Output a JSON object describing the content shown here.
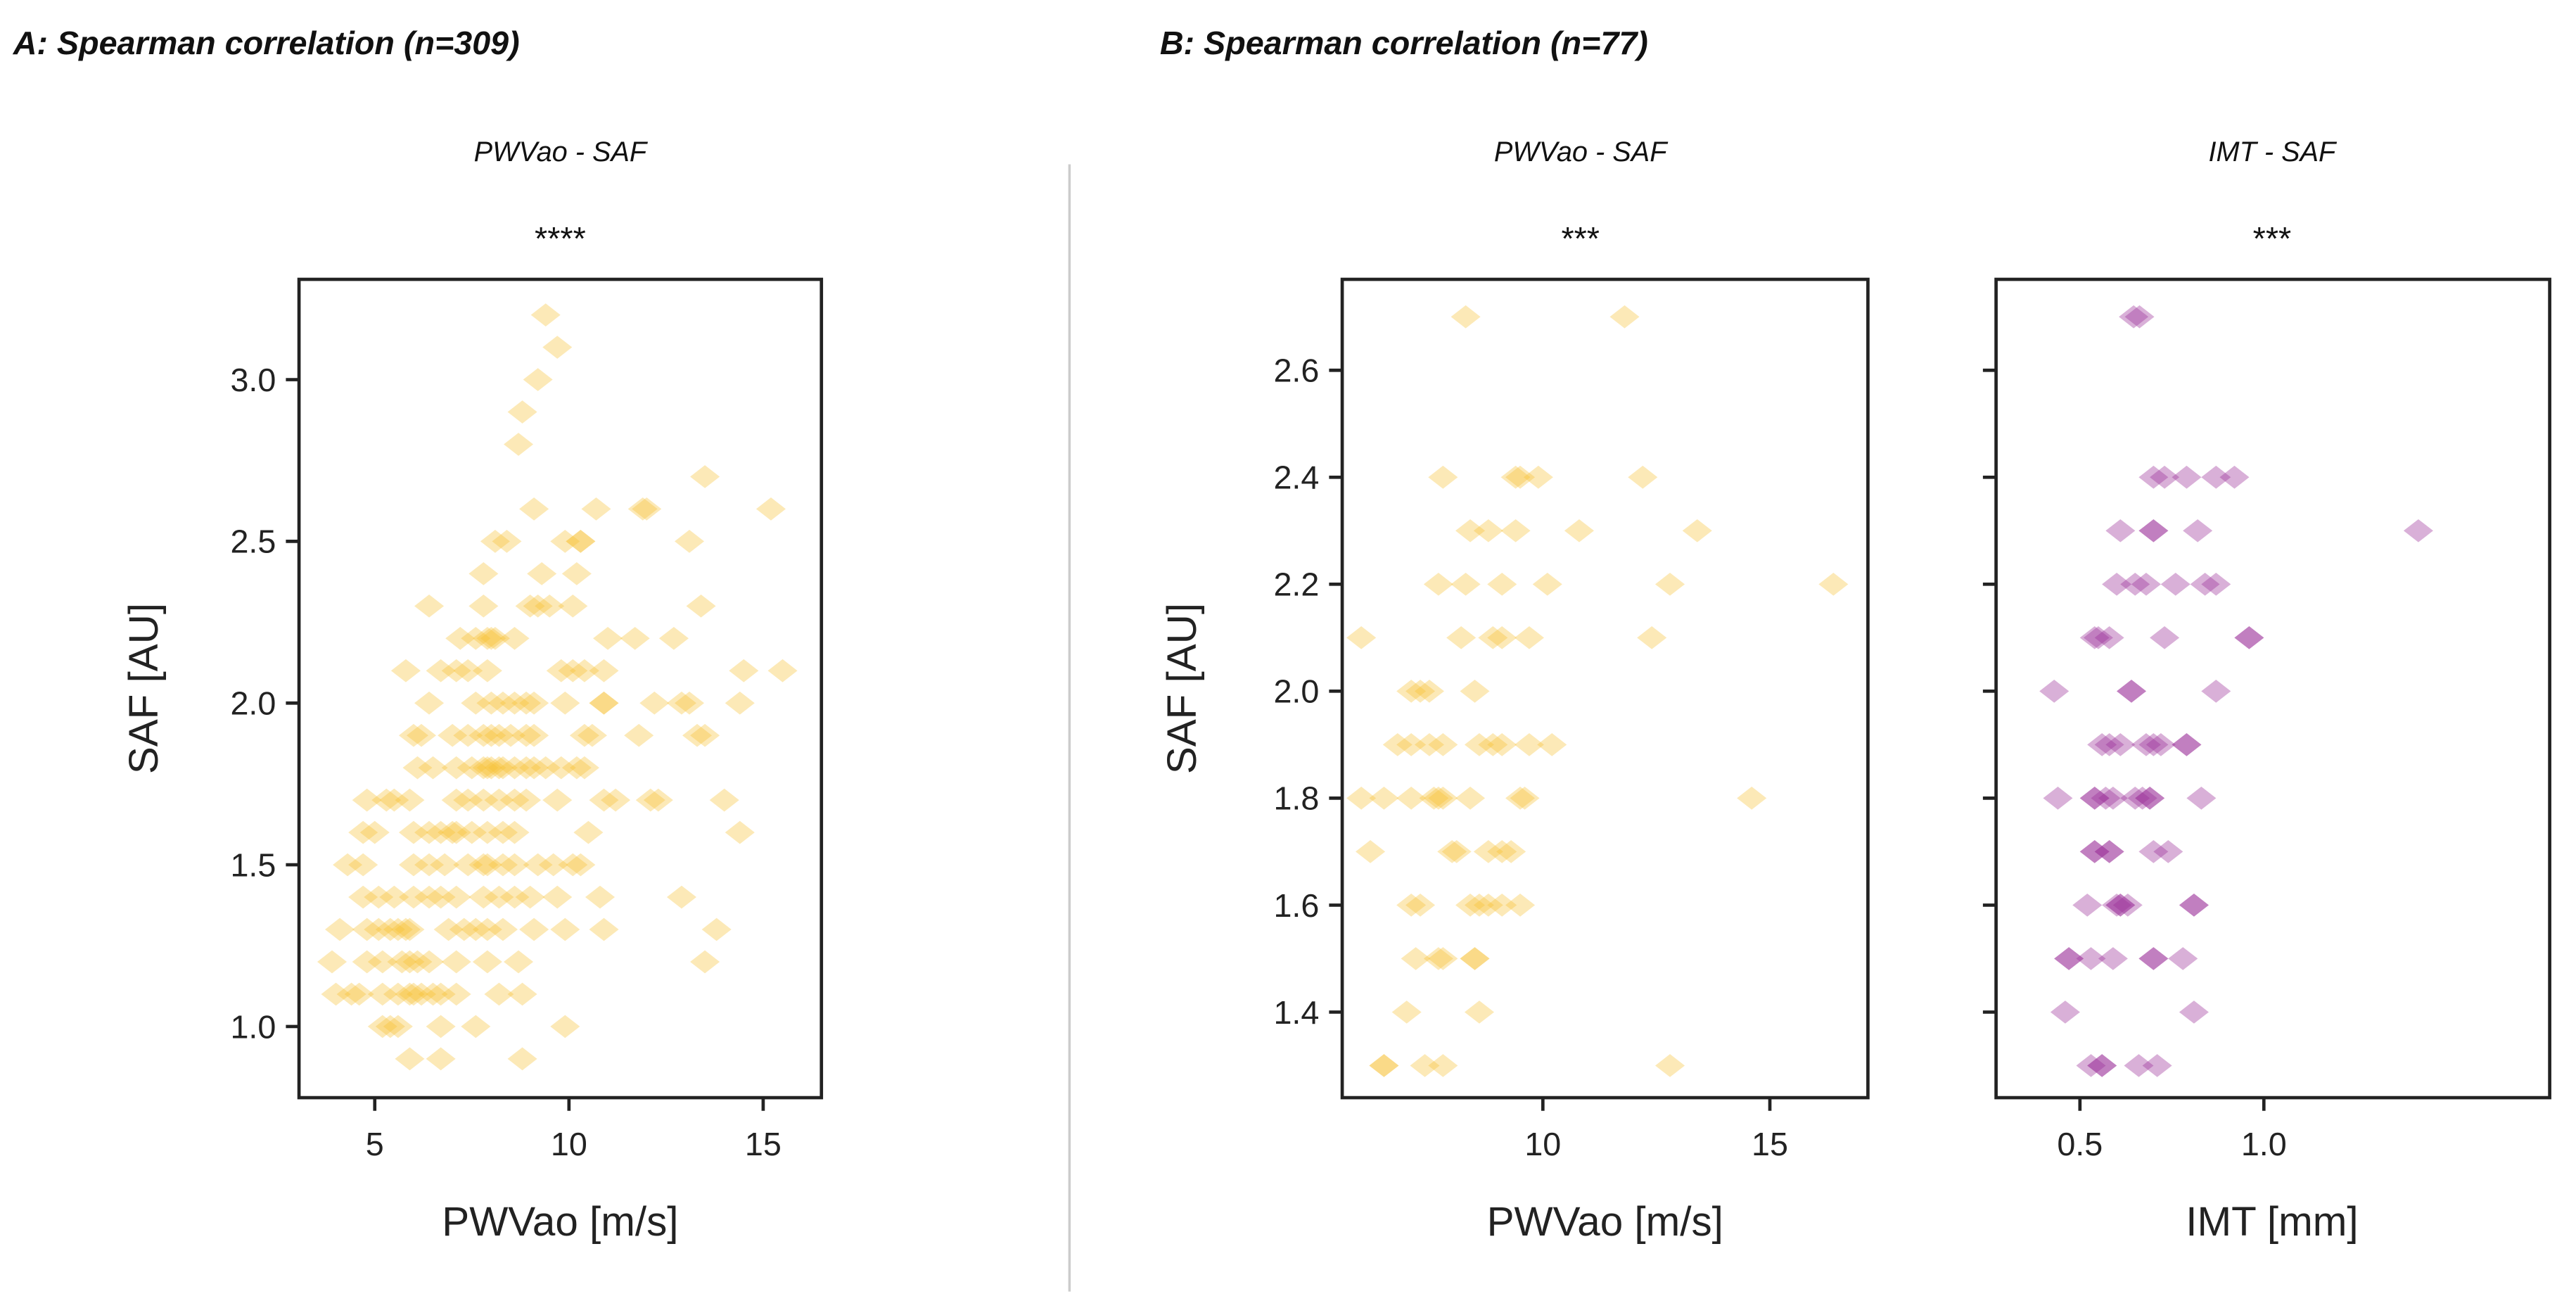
{
  "chart_data": [
    {
      "type": "scatter",
      "panel_title": "A: Spearman correlation (n=309)",
      "title": "PWVao - SAF",
      "significance": "****",
      "xlabel": "PWVao [m/s]",
      "ylabel": "SAF [AU]",
      "xlim": [
        3.05,
        16.5
      ],
      "ylim": [
        0.78,
        3.31
      ],
      "xticks": [
        5,
        10,
        15
      ],
      "xtick_labels": [
        "5",
        "10",
        "15"
      ],
      "yticks": [
        1.0,
        1.5,
        2.0,
        2.5,
        3.0
      ],
      "ytick_labels": [
        "1.0",
        "1.5",
        "2.0",
        "2.5",
        "3.0"
      ],
      "marker": "diamond",
      "color": "#f5c030",
      "grid": false,
      "points": [
        [
          9.4,
          3.2
        ],
        [
          9.7,
          3.1
        ],
        [
          9.2,
          3.0
        ],
        [
          8.8,
          2.9
        ],
        [
          8.7,
          2.8
        ],
        [
          13.5,
          2.7
        ],
        [
          9.1,
          2.6
        ],
        [
          10.7,
          2.6
        ],
        [
          11.9,
          2.6
        ],
        [
          12.0,
          2.6
        ],
        [
          15.2,
          2.6
        ],
        [
          8.1,
          2.5
        ],
        [
          8.4,
          2.5
        ],
        [
          9.9,
          2.5
        ],
        [
          10.3,
          2.5
        ],
        [
          10.3,
          2.5
        ],
        [
          13.1,
          2.5
        ],
        [
          7.8,
          2.4
        ],
        [
          9.3,
          2.4
        ],
        [
          10.2,
          2.4
        ],
        [
          6.4,
          2.3
        ],
        [
          7.8,
          2.3
        ],
        [
          9.0,
          2.3
        ],
        [
          9.2,
          2.3
        ],
        [
          9.5,
          2.3
        ],
        [
          10.1,
          2.3
        ],
        [
          13.4,
          2.3
        ],
        [
          7.2,
          2.2
        ],
        [
          7.6,
          2.2
        ],
        [
          7.9,
          2.2
        ],
        [
          8.1,
          2.2
        ],
        [
          8.6,
          2.2
        ],
        [
          8.0,
          2.2
        ],
        [
          11.0,
          2.2
        ],
        [
          11.7,
          2.2
        ],
        [
          12.7,
          2.2
        ],
        [
          5.8,
          2.1
        ],
        [
          6.7,
          2.1
        ],
        [
          7.1,
          2.1
        ],
        [
          7.4,
          2.1
        ],
        [
          7.9,
          2.1
        ],
        [
          9.8,
          2.1
        ],
        [
          10.1,
          2.1
        ],
        [
          10.4,
          2.1
        ],
        [
          10.9,
          2.1
        ],
        [
          14.5,
          2.1
        ],
        [
          15.5,
          2.1
        ],
        [
          6.4,
          2.0
        ],
        [
          7.6,
          2.0
        ],
        [
          8.0,
          2.0
        ],
        [
          8.3,
          2.0
        ],
        [
          8.6,
          2.0
        ],
        [
          8.9,
          2.0
        ],
        [
          9.1,
          2.0
        ],
        [
          9.9,
          2.0
        ],
        [
          10.9,
          2.0
        ],
        [
          10.9,
          2.0
        ],
        [
          12.2,
          2.0
        ],
        [
          12.9,
          2.0
        ],
        [
          13.1,
          2.0
        ],
        [
          14.4,
          2.0
        ],
        [
          6.0,
          1.9
        ],
        [
          6.2,
          1.9
        ],
        [
          7.0,
          1.9
        ],
        [
          7.4,
          1.9
        ],
        [
          7.8,
          1.9
        ],
        [
          8.2,
          1.9
        ],
        [
          8.5,
          1.9
        ],
        [
          8.9,
          1.9
        ],
        [
          9.1,
          1.9
        ],
        [
          8.0,
          1.9
        ],
        [
          10.4,
          1.9
        ],
        [
          10.6,
          1.9
        ],
        [
          11.8,
          1.9
        ],
        [
          13.3,
          1.9
        ],
        [
          13.5,
          1.9
        ],
        [
          6.1,
          1.8
        ],
        [
          6.5,
          1.8
        ],
        [
          7.1,
          1.8
        ],
        [
          7.5,
          1.8
        ],
        [
          7.8,
          1.8
        ],
        [
          8.0,
          1.8
        ],
        [
          8.3,
          1.8
        ],
        [
          8.6,
          1.8
        ],
        [
          8.9,
          1.8
        ],
        [
          9.1,
          1.8
        ],
        [
          9.4,
          1.8
        ],
        [
          9.8,
          1.8
        ],
        [
          10.2,
          1.8
        ],
        [
          10.4,
          1.8
        ],
        [
          7.9,
          1.8
        ],
        [
          8.2,
          1.8
        ],
        [
          4.8,
          1.7
        ],
        [
          5.3,
          1.7
        ],
        [
          5.5,
          1.7
        ],
        [
          5.9,
          1.7
        ],
        [
          7.1,
          1.7
        ],
        [
          7.4,
          1.7
        ],
        [
          7.8,
          1.7
        ],
        [
          8.2,
          1.7
        ],
        [
          8.6,
          1.7
        ],
        [
          8.9,
          1.7
        ],
        [
          9.7,
          1.7
        ],
        [
          10.9,
          1.7
        ],
        [
          11.2,
          1.7
        ],
        [
          12.1,
          1.7
        ],
        [
          12.3,
          1.7
        ],
        [
          14.0,
          1.7
        ],
        [
          4.7,
          1.6
        ],
        [
          5.0,
          1.6
        ],
        [
          6.0,
          1.6
        ],
        [
          6.4,
          1.6
        ],
        [
          6.7,
          1.6
        ],
        [
          7.1,
          1.6
        ],
        [
          7.5,
          1.6
        ],
        [
          7.9,
          1.6
        ],
        [
          8.3,
          1.6
        ],
        [
          8.6,
          1.6
        ],
        [
          7.0,
          1.6
        ],
        [
          10.5,
          1.6
        ],
        [
          14.4,
          1.6
        ],
        [
          4.3,
          1.5
        ],
        [
          4.7,
          1.5
        ],
        [
          6.0,
          1.5
        ],
        [
          6.4,
          1.5
        ],
        [
          6.8,
          1.5
        ],
        [
          7.4,
          1.5
        ],
        [
          7.9,
          1.5
        ],
        [
          8.3,
          1.5
        ],
        [
          8.6,
          1.5
        ],
        [
          9.2,
          1.5
        ],
        [
          9.6,
          1.5
        ],
        [
          10.1,
          1.5
        ],
        [
          10.3,
          1.5
        ],
        [
          7.8,
          1.5
        ],
        [
          4.7,
          1.4
        ],
        [
          5.1,
          1.4
        ],
        [
          5.5,
          1.4
        ],
        [
          6.0,
          1.4
        ],
        [
          6.4,
          1.4
        ],
        [
          6.7,
          1.4
        ],
        [
          7.1,
          1.4
        ],
        [
          7.8,
          1.4
        ],
        [
          8.2,
          1.4
        ],
        [
          8.6,
          1.4
        ],
        [
          9.0,
          1.4
        ],
        [
          9.7,
          1.4
        ],
        [
          10.8,
          1.4
        ],
        [
          12.9,
          1.4
        ],
        [
          4.1,
          1.3
        ],
        [
          4.8,
          1.3
        ],
        [
          5.1,
          1.3
        ],
        [
          5.4,
          1.3
        ],
        [
          5.8,
          1.3
        ],
        [
          5.9,
          1.3
        ],
        [
          6.9,
          1.3
        ],
        [
          7.3,
          1.3
        ],
        [
          7.6,
          1.3
        ],
        [
          7.9,
          1.3
        ],
        [
          8.3,
          1.3
        ],
        [
          9.1,
          1.3
        ],
        [
          9.9,
          1.3
        ],
        [
          10.9,
          1.3
        ],
        [
          13.8,
          1.3
        ],
        [
          5.6,
          1.3
        ],
        [
          3.9,
          1.2
        ],
        [
          4.8,
          1.2
        ],
        [
          5.2,
          1.2
        ],
        [
          5.7,
          1.2
        ],
        [
          6.1,
          1.2
        ],
        [
          6.4,
          1.2
        ],
        [
          7.1,
          1.2
        ],
        [
          7.9,
          1.2
        ],
        [
          8.7,
          1.2
        ],
        [
          13.5,
          1.2
        ],
        [
          5.9,
          1.2
        ],
        [
          4.0,
          1.1
        ],
        [
          4.4,
          1.1
        ],
        [
          4.6,
          1.1
        ],
        [
          5.2,
          1.1
        ],
        [
          5.6,
          1.1
        ],
        [
          5.9,
          1.1
        ],
        [
          6.2,
          1.1
        ],
        [
          6.5,
          1.1
        ],
        [
          6.7,
          1.1
        ],
        [
          7.1,
          1.1
        ],
        [
          8.2,
          1.1
        ],
        [
          8.8,
          1.1
        ],
        [
          6.0,
          1.1
        ],
        [
          5.2,
          1.0
        ],
        [
          5.4,
          1.0
        ],
        [
          5.6,
          1.0
        ],
        [
          6.7,
          1.0
        ],
        [
          7.6,
          1.0
        ],
        [
          9.9,
          1.0
        ],
        [
          5.9,
          0.9
        ],
        [
          6.7,
          0.9
        ],
        [
          8.8,
          0.9
        ]
      ]
    },
    {
      "type": "scatter",
      "panel_title": "B: Spearman correlation (n=77)",
      "title": "PWVao - SAF",
      "significance": "***",
      "xlabel": "PWVao [m/s]",
      "ylabel": "SAF [AU]",
      "xlim": [
        5.58,
        17.16
      ],
      "ylim": [
        1.24,
        2.77
      ],
      "xticks": [
        10,
        15
      ],
      "xtick_labels": [
        "10",
        "15"
      ],
      "yticks": [
        1.4,
        1.6,
        1.8,
        2.0,
        2.2,
        2.4,
        2.6
      ],
      "ytick_labels": [
        "1.4",
        "1.6",
        "1.8",
        "2.0",
        "2.2",
        "2.4",
        "2.6"
      ],
      "marker": "diamond",
      "color": "#f5c030",
      "grid": false,
      "points": [
        [
          8.3,
          2.7
        ],
        [
          11.8,
          2.7
        ],
        [
          7.8,
          2.4
        ],
        [
          9.4,
          2.4
        ],
        [
          9.5,
          2.4
        ],
        [
          9.9,
          2.4
        ],
        [
          12.2,
          2.4
        ],
        [
          8.4,
          2.3
        ],
        [
          8.8,
          2.3
        ],
        [
          9.4,
          2.3
        ],
        [
          10.8,
          2.3
        ],
        [
          13.4,
          2.3
        ],
        [
          7.7,
          2.2
        ],
        [
          8.3,
          2.2
        ],
        [
          9.1,
          2.2
        ],
        [
          10.1,
          2.2
        ],
        [
          12.8,
          2.2
        ],
        [
          16.4,
          2.2
        ],
        [
          6.0,
          2.1
        ],
        [
          8.2,
          2.1
        ],
        [
          8.9,
          2.1
        ],
        [
          9.1,
          2.1
        ],
        [
          9.7,
          2.1
        ],
        [
          12.4,
          2.1
        ],
        [
          7.1,
          2.0
        ],
        [
          7.3,
          2.0
        ],
        [
          7.5,
          2.0
        ],
        [
          8.5,
          2.0
        ],
        [
          6.8,
          1.9
        ],
        [
          7.1,
          1.9
        ],
        [
          7.5,
          1.9
        ],
        [
          7.8,
          1.9
        ],
        [
          8.6,
          1.9
        ],
        [
          8.9,
          1.9
        ],
        [
          9.1,
          1.9
        ],
        [
          9.7,
          1.9
        ],
        [
          10.2,
          1.9
        ],
        [
          6.0,
          1.8
        ],
        [
          6.5,
          1.8
        ],
        [
          7.1,
          1.8
        ],
        [
          7.6,
          1.8
        ],
        [
          7.7,
          1.8
        ],
        [
          7.8,
          1.8
        ],
        [
          8.4,
          1.8
        ],
        [
          9.5,
          1.8
        ],
        [
          9.6,
          1.8
        ],
        [
          14.6,
          1.8
        ],
        [
          6.2,
          1.7
        ],
        [
          8.0,
          1.7
        ],
        [
          8.1,
          1.7
        ],
        [
          8.8,
          1.7
        ],
        [
          9.1,
          1.7
        ],
        [
          9.3,
          1.7
        ],
        [
          7.1,
          1.6
        ],
        [
          7.3,
          1.6
        ],
        [
          8.4,
          1.6
        ],
        [
          8.6,
          1.6
        ],
        [
          8.8,
          1.6
        ],
        [
          9.1,
          1.6
        ],
        [
          9.5,
          1.6
        ],
        [
          7.2,
          1.5
        ],
        [
          7.7,
          1.5
        ],
        [
          7.8,
          1.5
        ],
        [
          8.5,
          1.5
        ],
        [
          8.5,
          1.5
        ],
        [
          7.0,
          1.4
        ],
        [
          8.6,
          1.4
        ],
        [
          6.5,
          1.3
        ],
        [
          6.5,
          1.3
        ],
        [
          7.4,
          1.3
        ],
        [
          7.8,
          1.3
        ],
        [
          12.8,
          1.3
        ]
      ]
    },
    {
      "type": "scatter",
      "title": "IMT - SAF",
      "significance": "***",
      "xlabel": "IMT [mm]",
      "ylabel": "",
      "xlim": [
        0.272,
        1.777
      ],
      "ylim": [
        1.24,
        2.77
      ],
      "xticks": [
        0.5,
        1.0
      ],
      "xtick_labels": [
        "0.5",
        "1.0"
      ],
      "yticks": [
        1.4,
        1.6,
        1.8,
        2.0,
        2.2,
        2.4,
        2.6
      ],
      "ytick_labels": [],
      "marker": "diamond",
      "color": "#9a2f98",
      "grid": false,
      "points": [
        [
          0.646,
          2.7
        ],
        [
          0.662,
          2.7
        ],
        [
          0.7,
          2.4
        ],
        [
          0.73,
          2.4
        ],
        [
          0.79,
          2.4
        ],
        [
          0.87,
          2.4
        ],
        [
          0.92,
          2.4
        ],
        [
          0.61,
          2.3
        ],
        [
          0.7,
          2.3
        ],
        [
          0.7,
          2.3
        ],
        [
          0.82,
          2.3
        ],
        [
          1.42,
          2.3
        ],
        [
          0.6,
          2.2
        ],
        [
          0.65,
          2.2
        ],
        [
          0.68,
          2.2
        ],
        [
          0.76,
          2.2
        ],
        [
          0.84,
          2.2
        ],
        [
          0.87,
          2.2
        ],
        [
          0.54,
          2.1
        ],
        [
          0.55,
          2.1
        ],
        [
          0.58,
          2.1
        ],
        [
          0.73,
          2.1
        ],
        [
          0.96,
          2.1
        ],
        [
          0.96,
          2.1
        ],
        [
          0.43,
          2.0
        ],
        [
          0.64,
          2.0
        ],
        [
          0.64,
          2.0
        ],
        [
          0.87,
          2.0
        ],
        [
          0.56,
          1.9
        ],
        [
          0.58,
          1.9
        ],
        [
          0.61,
          1.9
        ],
        [
          0.68,
          1.9
        ],
        [
          0.7,
          1.9
        ],
        [
          0.72,
          1.9
        ],
        [
          0.79,
          1.9
        ],
        [
          0.79,
          1.9
        ],
        [
          0.44,
          1.8
        ],
        [
          0.54,
          1.8
        ],
        [
          0.54,
          1.8
        ],
        [
          0.57,
          1.8
        ],
        [
          0.59,
          1.8
        ],
        [
          0.65,
          1.8
        ],
        [
          0.67,
          1.8
        ],
        [
          0.69,
          1.8
        ],
        [
          0.69,
          1.8
        ],
        [
          0.83,
          1.8
        ],
        [
          0.54,
          1.7
        ],
        [
          0.54,
          1.7
        ],
        [
          0.58,
          1.7
        ],
        [
          0.58,
          1.7
        ],
        [
          0.7,
          1.7
        ],
        [
          0.74,
          1.7
        ],
        [
          0.52,
          1.6
        ],
        [
          0.6,
          1.6
        ],
        [
          0.61,
          1.6
        ],
        [
          0.61,
          1.6
        ],
        [
          0.63,
          1.6
        ],
        [
          0.81,
          1.6
        ],
        [
          0.81,
          1.6
        ],
        [
          0.47,
          1.5
        ],
        [
          0.47,
          1.5
        ],
        [
          0.53,
          1.5
        ],
        [
          0.59,
          1.5
        ],
        [
          0.7,
          1.5
        ],
        [
          0.7,
          1.5
        ],
        [
          0.78,
          1.5
        ],
        [
          0.46,
          1.4
        ],
        [
          0.81,
          1.4
        ],
        [
          0.53,
          1.3
        ],
        [
          0.56,
          1.3
        ],
        [
          0.56,
          1.3
        ],
        [
          0.66,
          1.3
        ],
        [
          0.71,
          1.3
        ]
      ]
    }
  ]
}
